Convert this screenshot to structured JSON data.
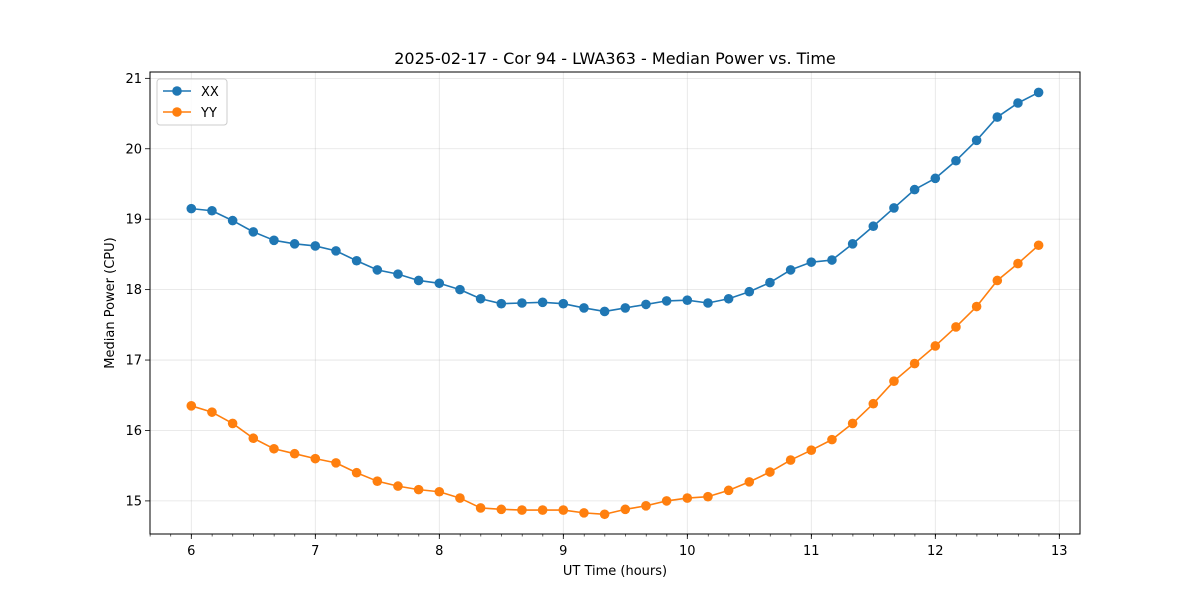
{
  "chart_data": {
    "type": "line",
    "title": "2025-02-17 - Cor 94 - LWA363 - Median Power vs. Time",
    "xlabel": "UT Time (hours)",
    "ylabel": "Median Power (CPU)",
    "xlim": [
      5.667,
      13.167
    ],
    "ylim": [
      14.53,
      21.09
    ],
    "x_ticks": [
      6,
      7,
      8,
      9,
      10,
      11,
      12,
      13
    ],
    "x_minor_step": 0.1667,
    "y_ticks": [
      15,
      16,
      17,
      18,
      19,
      20,
      21
    ],
    "grid": true,
    "legend_position": "top-left",
    "x": [
      6.0,
      6.1667,
      6.3333,
      6.5,
      6.6667,
      6.8333,
      7.0,
      7.1667,
      7.3333,
      7.5,
      7.6667,
      7.8333,
      8.0,
      8.1667,
      8.3333,
      8.5,
      8.6667,
      8.8333,
      9.0,
      9.1667,
      9.3333,
      9.5,
      9.6667,
      9.8333,
      10.0,
      10.1667,
      10.3333,
      10.5,
      10.6667,
      10.8333,
      11.0,
      11.1667,
      11.3333,
      11.5,
      11.6667,
      11.8333,
      12.0,
      12.1667,
      12.3333,
      12.5,
      12.6667,
      12.8333
    ],
    "series": [
      {
        "name": "XX",
        "color": "#1f77b4",
        "values": [
          19.15,
          19.12,
          18.98,
          18.82,
          18.7,
          18.65,
          18.62,
          18.55,
          18.41,
          18.28,
          18.22,
          18.13,
          18.09,
          18.0,
          17.87,
          17.8,
          17.81,
          17.82,
          17.8,
          17.74,
          17.69,
          17.74,
          17.79,
          17.84,
          17.85,
          17.81,
          17.87,
          17.97,
          18.1,
          18.28,
          18.39,
          18.42,
          18.65,
          18.9,
          19.16,
          19.42,
          19.58,
          19.83,
          20.12,
          20.45,
          20.65,
          20.8
        ]
      },
      {
        "name": "YY",
        "color": "#ff7f0e",
        "values": [
          16.35,
          16.26,
          16.1,
          15.89,
          15.74,
          15.67,
          15.6,
          15.54,
          15.4,
          15.28,
          15.21,
          15.16,
          15.13,
          15.04,
          14.9,
          14.88,
          14.87,
          14.87,
          14.87,
          14.83,
          14.81,
          14.88,
          14.93,
          15.0,
          15.04,
          15.06,
          15.15,
          15.27,
          15.41,
          15.58,
          15.72,
          15.87,
          16.1,
          16.38,
          16.7,
          16.95,
          17.2,
          17.47,
          17.76,
          18.13,
          18.37,
          18.63
        ]
      }
    ]
  }
}
